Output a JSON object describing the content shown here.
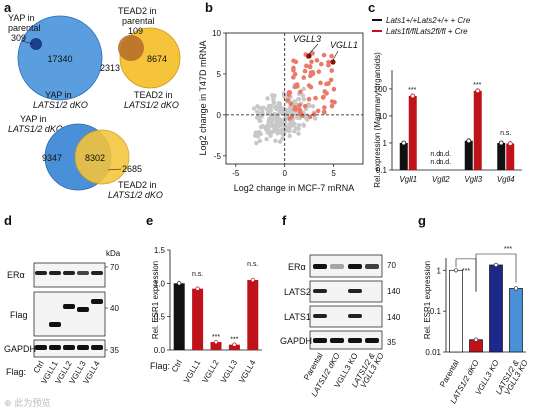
{
  "panels": {
    "a": {
      "label": "a",
      "venn1": {
        "left_label": [
          "YAP in",
          "parental"
        ],
        "left_only": "309",
        "right_label": [
          "YAP in",
          "LATS1/2 dKO"
        ],
        "overlap": "17340"
      },
      "venn2": {
        "top_label": [
          "TEAD2 in",
          "parental"
        ],
        "top_only": "109",
        "left_only": "2313",
        "overlap": "8674",
        "bottom_label": [
          "TEAD2 in",
          "LATS1/2 dKO"
        ]
      },
      "venn3": {
        "top_label": [
          "YAP in",
          "LATS1/2 dKO"
        ],
        "left_only": "9347",
        "overlap": "8302",
        "right_only": "2685",
        "bottom_label": [
          "TEAD2 in",
          "LATS1/2 dKO"
        ]
      }
    },
    "b": {
      "label": "b"
    },
    "c": {
      "label": "c",
      "legend": [
        {
          "name": "Lats1+/+Lats2+/+ + Cre",
          "color": "#111111"
        },
        {
          "name": "Lats1fl/flLats2fl/fl + Cre",
          "color": "#c0121b"
        }
      ],
      "nd": "n.d.",
      "ns": "n.s.",
      "sig": "***"
    },
    "d": {
      "label": "d",
      "rows": [
        "ERα",
        "Flag",
        "GAPDH"
      ],
      "kda": "kDa",
      "markers": [
        "70",
        "40",
        "35"
      ],
      "flag_label": "Flag:",
      "lanes": [
        "Ctrl",
        "VGLL1",
        "VGLL2",
        "VGLL3",
        "VGLL4"
      ]
    },
    "e": {
      "label": "e",
      "ns": "n.s.",
      "sig": "***",
      "flag_label": "Flag:"
    },
    "f": {
      "label": "f",
      "rows": [
        "ERα",
        "LATS2",
        "LATS1",
        "GAPDH"
      ],
      "markers": [
        "70",
        "140",
        "140",
        "35"
      ],
      "lanes": [
        "Parental",
        "LATS1/2 dKO",
        "VGLL3 KO",
        "LATS1/2 &",
        "VGLL3 KO"
      ]
    },
    "g": {
      "label": "g",
      "sig": "***"
    }
  },
  "watermark": "⊕ 此为预览",
  "colors": {
    "red": "#c0121b",
    "salmon": "#ea7a68",
    "blue": "#4a90d9",
    "darkblue": "#1b2a8a",
    "yellow": "#f5c43a"
  },
  "chart_data": [
    {
      "type": "scatter",
      "panel": "b",
      "xlabel": "Log2 change in MCF-7 mRNA",
      "ylabel": "Log2 change in T47D mRNA",
      "xlim": [
        -6,
        8
      ],
      "ylim": [
        -6,
        10
      ],
      "xticks": [
        "-5",
        "0",
        "5"
      ],
      "yticks": [
        "-5",
        "0",
        "5",
        "10"
      ],
      "annotations": [
        "VGLL3",
        "VGLL1"
      ]
    },
    {
      "type": "bar",
      "panel": "c",
      "scale": "log",
      "ylabel": "Rel. expression (Mammary organoids)",
      "yticks": [
        "0.1",
        "1",
        "10",
        "100"
      ],
      "ylim": [
        0.1,
        500
      ],
      "categories": [
        "Vgll1",
        "Vgll2",
        "Vgll3",
        "Vgll4"
      ],
      "series": [
        {
          "name": "Lats1+/+Lats2+/+ + Cre",
          "values": [
            1,
            null,
            1.2,
            1
          ]
        },
        {
          "name": "Lats1fl/flLats2fl/fl + Cre",
          "values": [
            55,
            null,
            85,
            0.95
          ]
        }
      ]
    },
    {
      "type": "bar",
      "panel": "e",
      "ylabel": "Rel. ESR1 expression",
      "yticks": [
        "0.0",
        "0.5",
        "1.0",
        "1.5"
      ],
      "ylim": [
        0,
        1.5
      ],
      "categories": [
        "Ctrl",
        "VGLL1",
        "VGLL2",
        "VGLL3",
        "VGLL4"
      ],
      "values": [
        1.0,
        0.92,
        0.12,
        0.08,
        1.05
      ]
    },
    {
      "type": "bar",
      "panel": "g",
      "scale": "log",
      "ylabel": "Rel. ESR1 expression",
      "yticks": [
        "0.01",
        "0.1",
        "1"
      ],
      "ylim": [
        0.01,
        2
      ],
      "categories": [
        "Parental",
        "LATS1/2 dKO",
        "VGLL3 KO",
        "LATS1/2 & VGLL3 KO"
      ],
      "values": [
        1.0,
        0.02,
        1.35,
        0.36
      ]
    }
  ]
}
